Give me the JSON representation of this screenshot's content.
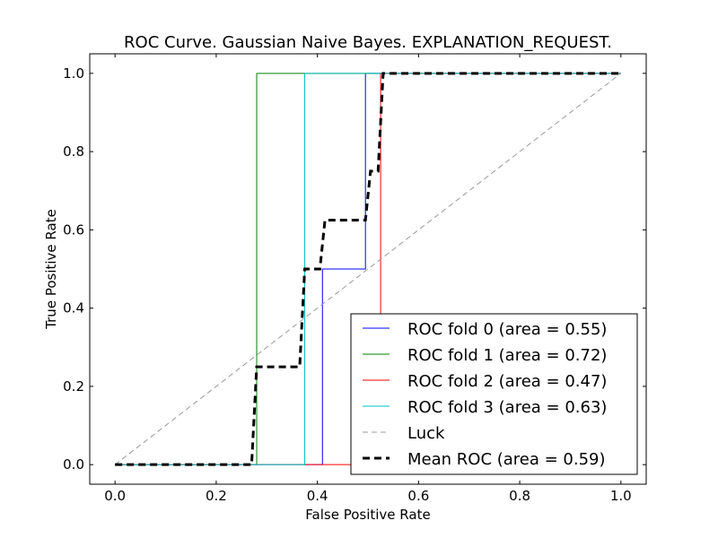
{
  "chart_data": {
    "type": "line",
    "title": "ROC Curve. Gaussian Naive Bayes. EXPLANATION_REQUEST.",
    "xlabel": "False Positive Rate",
    "ylabel": "True Positive Rate",
    "xlim": [
      -0.05,
      1.05
    ],
    "ylim": [
      -0.05,
      1.05
    ],
    "xticks": [
      "0.0",
      "0.2",
      "0.4",
      "0.6",
      "0.8",
      "1.0"
    ],
    "yticks": [
      "0.0",
      "0.2",
      "0.4",
      "0.6",
      "0.8",
      "1.0"
    ],
    "grid": false,
    "legend_position": "lower-right",
    "series": [
      {
        "name": "ROC fold 0 (area = 0.55)",
        "color": "#0000ff",
        "style": "solid",
        "points": [
          [
            0,
            0
          ],
          [
            0.41,
            0
          ],
          [
            0.41,
            0.5
          ],
          [
            0.495,
            0.5
          ],
          [
            0.495,
            1
          ],
          [
            1,
            1
          ]
        ]
      },
      {
        "name": "ROC fold 1 (area = 0.72)",
        "color": "#008000",
        "style": "solid",
        "points": [
          [
            0,
            0
          ],
          [
            0.28,
            0
          ],
          [
            0.28,
            1
          ],
          [
            1,
            1
          ]
        ]
      },
      {
        "name": "ROC fold 2 (area = 0.47)",
        "color": "#ff0000",
        "style": "solid",
        "points": [
          [
            0,
            0
          ],
          [
            0.525,
            0
          ],
          [
            0.525,
            1
          ],
          [
            1,
            1
          ]
        ]
      },
      {
        "name": "ROC fold 3 (area = 0.63)",
        "color": "#00bfbf",
        "style": "solid",
        "points": [
          [
            0,
            0
          ],
          [
            0.375,
            0
          ],
          [
            0.375,
            1
          ],
          [
            1,
            1
          ]
        ]
      },
      {
        "name": "Luck",
        "color": "#999999",
        "style": "dashed-thin",
        "points": [
          [
            0,
            0
          ],
          [
            1,
            1
          ]
        ]
      },
      {
        "name": "Mean ROC (area = 0.59)",
        "color": "#000000",
        "style": "dashed-thick",
        "points": [
          [
            0,
            0
          ],
          [
            0.27,
            0
          ],
          [
            0.28,
            0.25
          ],
          [
            0.365,
            0.25
          ],
          [
            0.375,
            0.5
          ],
          [
            0.405,
            0.5
          ],
          [
            0.415,
            0.625
          ],
          [
            0.495,
            0.625
          ],
          [
            0.505,
            0.75
          ],
          [
            0.52,
            0.75
          ],
          [
            0.53,
            1
          ],
          [
            1,
            1
          ]
        ]
      }
    ]
  }
}
